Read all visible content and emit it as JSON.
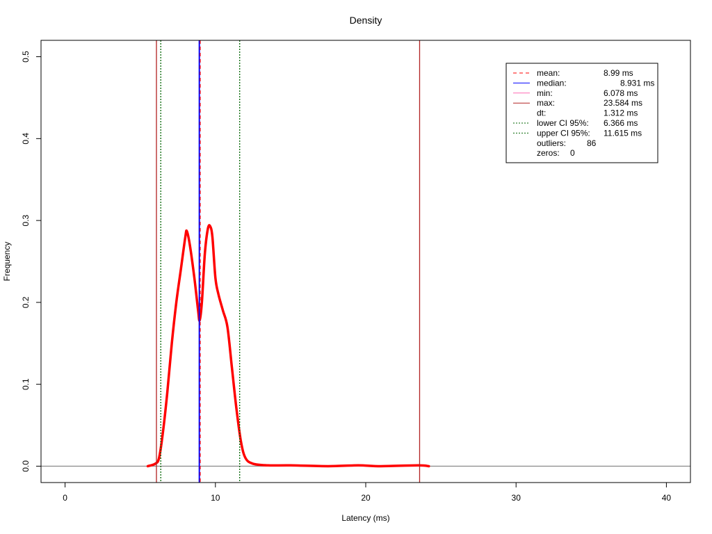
{
  "chart_data": {
    "type": "line",
    "title": "Density",
    "xlabel": "Latency (ms)",
    "ylabel": "Frequency",
    "xlim": [
      -1.6,
      41.6
    ],
    "ylim": [
      -0.02,
      0.52
    ],
    "x_ticks": [
      0,
      10,
      20,
      30,
      40
    ],
    "y_ticks": [
      0.0,
      0.1,
      0.2,
      0.3,
      0.4,
      0.5
    ],
    "x_tick_labels": [
      "0",
      "10",
      "20",
      "30",
      "40"
    ],
    "y_tick_labels": [
      "0.0",
      "0.1",
      "0.2",
      "0.3",
      "0.4",
      "0.5"
    ],
    "grid": false,
    "baseline": 0,
    "density": {
      "color": "#ff0000",
      "points": [
        [
          5.5,
          0.0
        ],
        [
          6.0,
          0.003
        ],
        [
          6.25,
          0.01
        ],
        [
          6.5,
          0.04
        ],
        [
          6.8,
          0.09
        ],
        [
          7.1,
          0.15
        ],
        [
          7.4,
          0.2
        ],
        [
          7.7,
          0.24
        ],
        [
          8.0,
          0.28
        ],
        [
          8.1,
          0.287
        ],
        [
          8.3,
          0.27
        ],
        [
          8.6,
          0.23
        ],
        [
          8.85,
          0.19
        ],
        [
          8.95,
          0.178
        ],
        [
          9.1,
          0.2
        ],
        [
          9.3,
          0.26
        ],
        [
          9.5,
          0.29
        ],
        [
          9.65,
          0.293
        ],
        [
          9.8,
          0.28
        ],
        [
          10.0,
          0.23
        ],
        [
          10.2,
          0.21
        ],
        [
          10.5,
          0.19
        ],
        [
          10.8,
          0.17
        ],
        [
          11.1,
          0.12
        ],
        [
          11.4,
          0.07
        ],
        [
          11.7,
          0.03
        ],
        [
          12.0,
          0.01
        ],
        [
          12.5,
          0.003
        ],
        [
          13.5,
          0.001
        ],
        [
          15.0,
          0.001
        ],
        [
          17.5,
          0.0
        ],
        [
          19.5,
          0.001
        ],
        [
          21.0,
          0.0
        ],
        [
          23.5,
          0.001
        ],
        [
          24.2,
          0.0
        ]
      ]
    },
    "vlines": [
      {
        "name": "min",
        "x": 6.078,
        "color": "#b22222",
        "style": "solid",
        "width": 1.3
      },
      {
        "name": "lower-ci",
        "x": 6.366,
        "color": "#006400",
        "style": "dotted",
        "width": 1.3
      },
      {
        "name": "median",
        "x": 8.931,
        "color": "#0000ff",
        "style": "solid",
        "width": 2
      },
      {
        "name": "mean",
        "x": 8.99,
        "color": "#ff0000",
        "style": "dashed",
        "width": 1.2
      },
      {
        "name": "upper-ci",
        "x": 11.615,
        "color": "#006400",
        "style": "dotted",
        "width": 1.3
      },
      {
        "name": "max",
        "x": 23.584,
        "color": "#b22222",
        "style": "solid",
        "width": 1.3
      }
    ],
    "legend": {
      "position": "top-right",
      "entries": [
        {
          "label": "mean:",
          "value": "8.99 ms",
          "color": "#ff0000",
          "style": "dashed"
        },
        {
          "label": "median:",
          "value": "8.931 ms",
          "color": "#0000ff",
          "style": "solid"
        },
        {
          "label": "min:",
          "value": "6.078 ms",
          "color": "#ff69b4",
          "style": "solid"
        },
        {
          "label": "max:",
          "value": "23.584 ms",
          "color": "#b22222",
          "style": "solid"
        },
        {
          "label": "dt:",
          "value": "1.312 ms",
          "color": "",
          "style": "none"
        },
        {
          "label": "lower CI 95%:",
          "value": "6.366 ms",
          "color": "#006400",
          "style": "dotted"
        },
        {
          "label": "upper CI 95%:",
          "value": "11.615 ms",
          "color": "#006400",
          "style": "dotted"
        },
        {
          "label": "outliers:",
          "value": "86",
          "color": "",
          "style": "none"
        },
        {
          "label": "zeros:",
          "value": "0",
          "color": "",
          "style": "none"
        }
      ]
    }
  }
}
